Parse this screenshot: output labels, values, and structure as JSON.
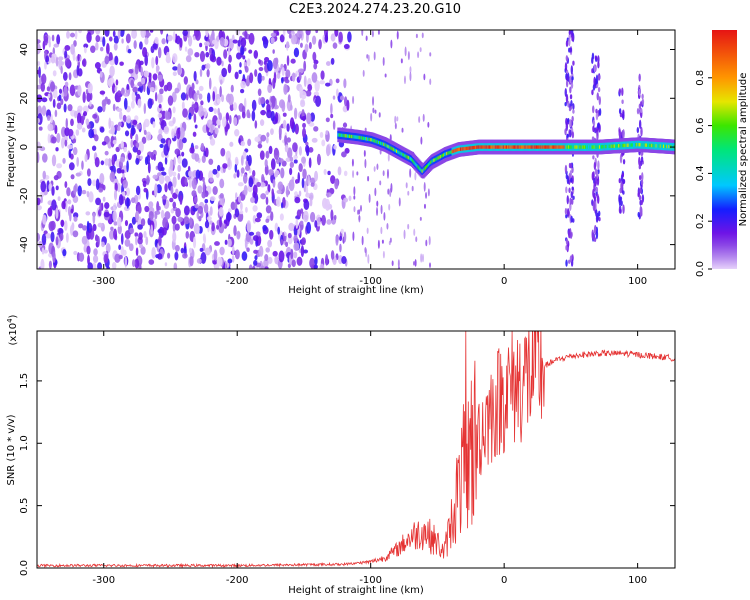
{
  "title": "C2E3.2024.274.23.20.G10",
  "chart_data": [
    {
      "type": "heatmap",
      "xlabel": "Height of straight line (km)",
      "ylabel": "Frequency (Hz)",
      "xlim": [
        -350,
        128
      ],
      "ylim": [
        -50,
        48
      ],
      "xticks": [
        -300,
        -200,
        -100,
        0,
        100
      ],
      "yticks": [
        -40,
        -20,
        0,
        20,
        40
      ],
      "colorbar": {
        "label": "Normalized spectral amplitude",
        "range": [
          0,
          1
        ],
        "ticks": [
          0.0,
          0.2,
          0.4,
          0.6,
          0.8
        ]
      },
      "ridge": [
        {
          "x": -125,
          "y": 5
        },
        {
          "x": -110,
          "y": 4
        },
        {
          "x": -100,
          "y": 3
        },
        {
          "x": -90,
          "y": 1
        },
        {
          "x": -80,
          "y": -2
        },
        {
          "x": -70,
          "y": -5
        },
        {
          "x": -62,
          "y": -10
        },
        {
          "x": -55,
          "y": -6
        },
        {
          "x": -45,
          "y": -3
        },
        {
          "x": -35,
          "y": -1
        },
        {
          "x": -20,
          "y": 0
        },
        {
          "x": 0,
          "y": 0
        },
        {
          "x": 45,
          "y": 0
        },
        {
          "x": 70,
          "y": 0
        },
        {
          "x": 100,
          "y": 1
        },
        {
          "x": 128,
          "y": 0
        }
      ]
    },
    {
      "type": "line",
      "xlabel": "Height of straight line (km)",
      "ylabel": "SNR (10 * v/v)",
      "yscale_note": "(x10",
      "yscale_exp": "4",
      "yscale_close": ")",
      "xlim": [
        -350,
        128
      ],
      "ylim": [
        0,
        1.9
      ],
      "xticks": [
        -300,
        -200,
        -100,
        0,
        100
      ],
      "yticks": [
        0.0,
        0.5,
        1.0,
        1.5
      ],
      "color": "#e53333",
      "series": [
        {
          "x": [
            -350,
            -200,
            -120,
            -100,
            -90,
            -80,
            -70,
            -60,
            -50,
            -45,
            -40,
            -35,
            -30,
            -25,
            -20,
            -15,
            -10,
            -5,
            0,
            10,
            20,
            30,
            40,
            50,
            60,
            70,
            80,
            90,
            100,
            110,
            120,
            128
          ],
          "y": [
            0.02,
            0.02,
            0.03,
            0.05,
            0.08,
            0.15,
            0.25,
            0.3,
            0.2,
            0.12,
            0.35,
            0.6,
            0.8,
            0.95,
            1.05,
            1.15,
            1.25,
            1.33,
            1.4,
            1.48,
            1.55,
            1.62,
            1.67,
            1.7,
            1.71,
            1.72,
            1.72,
            1.72,
            1.71,
            1.7,
            1.69,
            1.68
          ]
        }
      ]
    }
  ]
}
